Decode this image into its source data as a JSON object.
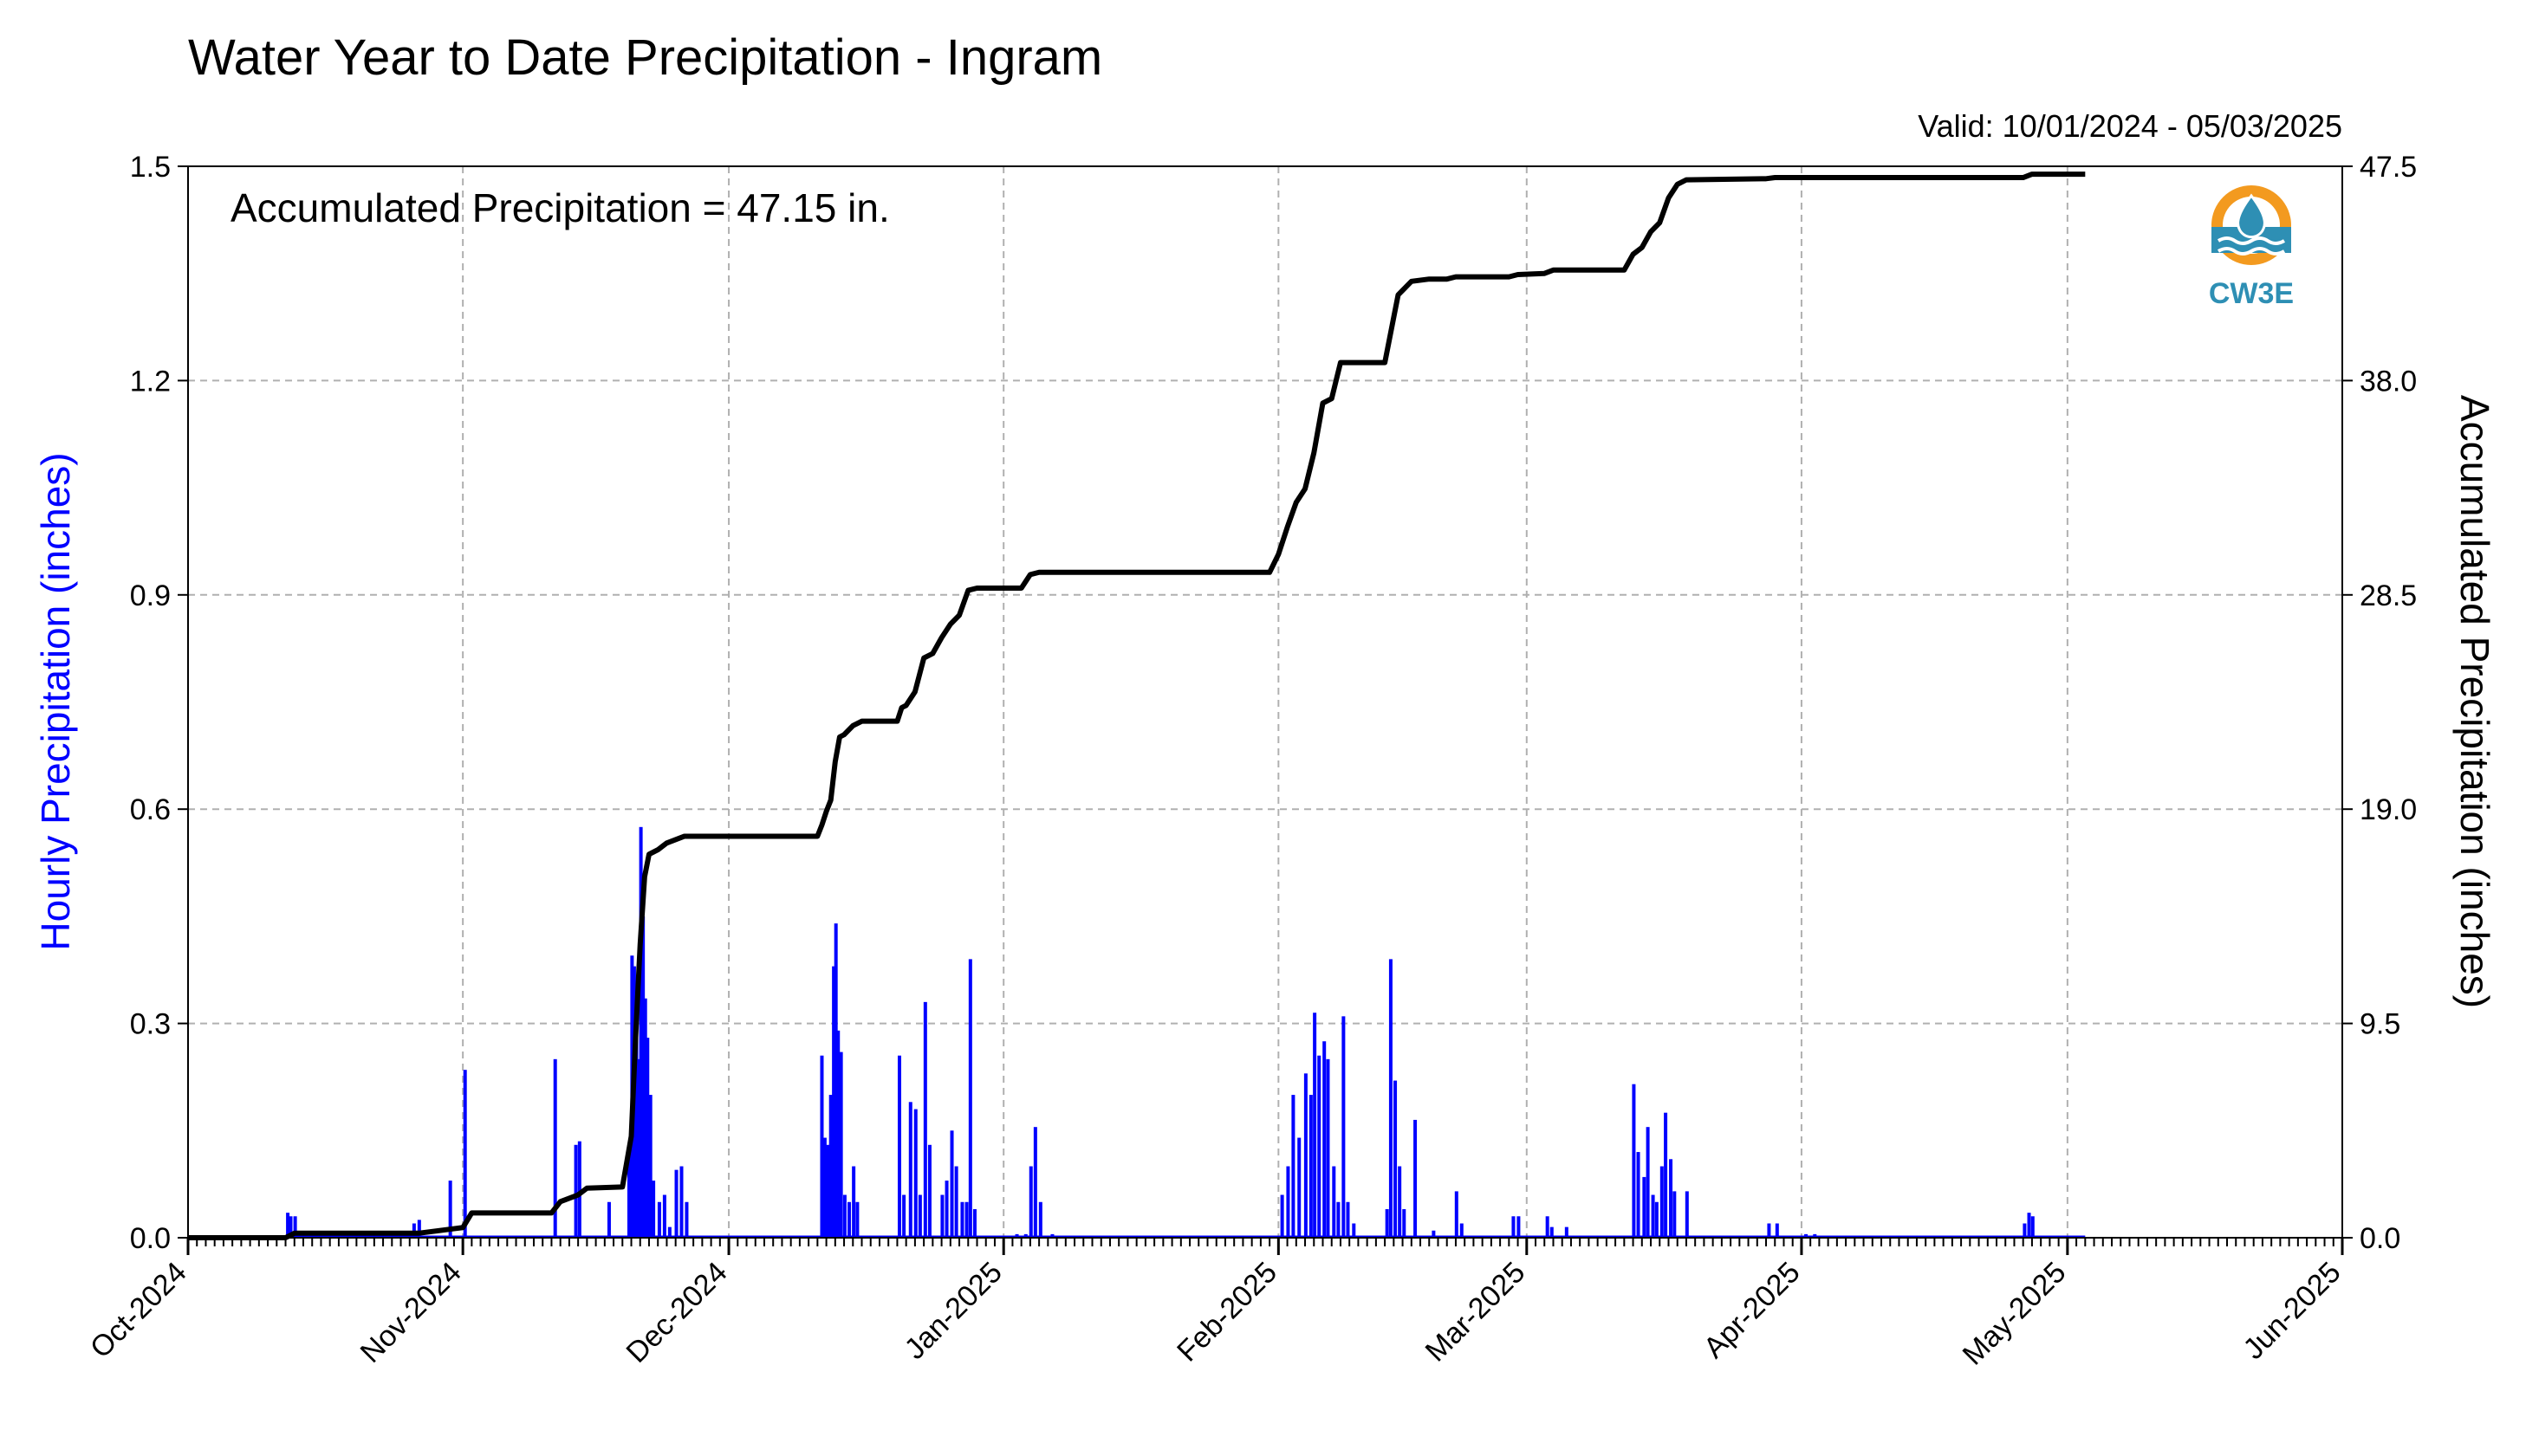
{
  "chart_data": {
    "type": "bar+line",
    "title": "Water Year to Date Precipitation - Ingram",
    "valid_text": "Valid: 10/01/2024 - 05/03/2025",
    "annotation": "Accumulated Precipitation = 47.15 in.",
    "logo_text": "CW3E",
    "ylabel_left": "Hourly Precipitation (inches)",
    "ylabel_right": "Accumulated Precipitation (inches)",
    "ylim_left": [
      0,
      1.5
    ],
    "ylim_right": [
      0,
      47.5
    ],
    "yticks_left": [
      "0.0",
      "0.3",
      "0.6",
      "0.9",
      "1.2",
      "1.5"
    ],
    "yticks_right": [
      "0.0",
      "9.5",
      "19.0",
      "28.5",
      "38.0",
      "47.5"
    ],
    "x_start": "2024-10-01",
    "x_end": "2025-06-01",
    "x_month_labels": [
      "Oct-2024",
      "Nov-2024",
      "Dec-2024",
      "Jan-2025",
      "Feb-2025",
      "Mar-2025",
      "Apr-2025",
      "May-2025",
      "Jun-2025"
    ],
    "x_month_dates": [
      "2024-10-01",
      "2024-11-01",
      "2024-12-01",
      "2025-01-01",
      "2025-02-01",
      "2025-03-01",
      "2025-04-01",
      "2025-05-01",
      "2025-06-01"
    ],
    "grid": true,
    "colors": {
      "hourly": "#0000ff",
      "accumulated": "#000000",
      "grid": "#b0b0b0",
      "left_label": "#0000ff"
    },
    "series": [
      {
        "name": "Hourly Precipitation",
        "type": "bar",
        "points": [
          [
            "2024-10-12T06",
            0.035
          ],
          [
            "2024-10-12T14",
            0.03
          ],
          [
            "2024-10-13T02",
            0.03
          ],
          [
            "2024-10-26T12",
            0.02
          ],
          [
            "2024-10-27T02",
            0.025
          ],
          [
            "2024-10-30T14",
            0.08
          ],
          [
            "2024-11-01T06",
            0.235
          ],
          [
            "2024-11-11T10",
            0.25
          ],
          [
            "2024-11-13T18",
            0.13
          ],
          [
            "2024-11-14T04",
            0.135
          ],
          [
            "2024-11-17T12",
            0.05
          ],
          [
            "2024-11-19T18",
            0.12
          ],
          [
            "2024-11-20T02",
            0.395
          ],
          [
            "2024-11-20T08",
            0.38
          ],
          [
            "2024-11-20T14",
            0.32
          ],
          [
            "2024-11-20T20",
            0.25
          ],
          [
            "2024-11-21T02",
            0.575
          ],
          [
            "2024-11-21T08",
            0.45
          ],
          [
            "2024-11-21T14",
            0.335
          ],
          [
            "2024-11-21T20",
            0.28
          ],
          [
            "2024-11-22T04",
            0.2
          ],
          [
            "2024-11-22T12",
            0.08
          ],
          [
            "2024-11-23T04",
            0.05
          ],
          [
            "2024-11-23T18",
            0.06
          ],
          [
            "2024-11-24T08",
            0.015
          ],
          [
            "2024-11-25T02",
            0.095
          ],
          [
            "2024-11-25T16",
            0.1
          ],
          [
            "2024-11-26T06",
            0.05
          ],
          [
            "2024-12-11T12",
            0.255
          ],
          [
            "2024-12-11T20",
            0.14
          ],
          [
            "2024-12-12T04",
            0.13
          ],
          [
            "2024-12-12T12",
            0.2
          ],
          [
            "2024-12-12T20",
            0.38
          ],
          [
            "2024-12-13T02",
            0.44
          ],
          [
            "2024-12-13T08",
            0.29
          ],
          [
            "2024-12-13T16",
            0.26
          ],
          [
            "2024-12-14T02",
            0.06
          ],
          [
            "2024-12-14T14",
            0.05
          ],
          [
            "2024-12-15T02",
            0.1
          ],
          [
            "2024-12-15T12",
            0.05
          ],
          [
            "2024-12-20T06",
            0.255
          ],
          [
            "2024-12-20T18",
            0.06
          ],
          [
            "2024-12-21T12",
            0.19
          ],
          [
            "2024-12-22T02",
            0.18
          ],
          [
            "2024-12-22T14",
            0.06
          ],
          [
            "2024-12-23T04",
            0.33
          ],
          [
            "2024-12-23T16",
            0.13
          ],
          [
            "2024-12-25T02",
            0.06
          ],
          [
            "2024-12-25T14",
            0.08
          ],
          [
            "2024-12-26T04",
            0.15
          ],
          [
            "2024-12-26T16",
            0.1
          ],
          [
            "2024-12-27T08",
            0.05
          ],
          [
            "2024-12-27T20",
            0.05
          ],
          [
            "2024-12-28T06",
            0.39
          ],
          [
            "2024-12-28T18",
            0.04
          ],
          [
            "2025-01-02T12",
            0.005
          ],
          [
            "2025-01-03T12",
            0.005
          ],
          [
            "2025-01-04T02",
            0.1
          ],
          [
            "2025-01-04T14",
            0.155
          ],
          [
            "2025-01-05T04",
            0.05
          ],
          [
            "2025-01-06T12",
            0.005
          ],
          [
            "2025-02-01T10",
            0.06
          ],
          [
            "2025-02-02T02",
            0.1
          ],
          [
            "2025-02-02T16",
            0.2
          ],
          [
            "2025-02-03T08",
            0.14
          ],
          [
            "2025-02-04T02",
            0.23
          ],
          [
            "2025-02-04T16",
            0.2
          ],
          [
            "2025-02-05T02",
            0.315
          ],
          [
            "2025-02-05T14",
            0.255
          ],
          [
            "2025-02-06T04",
            0.275
          ],
          [
            "2025-02-06T14",
            0.25
          ],
          [
            "2025-02-07T06",
            0.1
          ],
          [
            "2025-02-07T18",
            0.05
          ],
          [
            "2025-02-08T08",
            0.31
          ],
          [
            "2025-02-08T20",
            0.05
          ],
          [
            "2025-02-09T12",
            0.02
          ],
          [
            "2025-02-13T06",
            0.04
          ],
          [
            "2025-02-13T16",
            0.39
          ],
          [
            "2025-02-14T04",
            0.22
          ],
          [
            "2025-02-14T16",
            0.1
          ],
          [
            "2025-02-15T04",
            0.04
          ],
          [
            "2025-02-16T10",
            0.165
          ],
          [
            "2025-02-18T12",
            0.01
          ],
          [
            "2025-02-21T02",
            0.065
          ],
          [
            "2025-02-21T16",
            0.02
          ],
          [
            "2025-02-27T12",
            0.03
          ],
          [
            "2025-02-28T02",
            0.03
          ],
          [
            "2025-03-03T08",
            0.03
          ],
          [
            "2025-03-03T20",
            0.015
          ],
          [
            "2025-03-05T12",
            0.015
          ],
          [
            "2025-03-13T02",
            0.215
          ],
          [
            "2025-03-13T14",
            0.12
          ],
          [
            "2025-03-14T06",
            0.085
          ],
          [
            "2025-03-14T16",
            0.155
          ],
          [
            "2025-03-15T06",
            0.06
          ],
          [
            "2025-03-15T16",
            0.05
          ],
          [
            "2025-03-16T06",
            0.1
          ],
          [
            "2025-03-16T16",
            0.175
          ],
          [
            "2025-03-17T06",
            0.11
          ],
          [
            "2025-03-17T16",
            0.065
          ],
          [
            "2025-03-19T02",
            0.065
          ],
          [
            "2025-03-28T08",
            0.02
          ],
          [
            "2025-03-29T06",
            0.02
          ],
          [
            "2025-04-01T12",
            0.005
          ],
          [
            "2025-04-02T12",
            0.005
          ],
          [
            "2025-04-26T04",
            0.02
          ],
          [
            "2025-04-26T16",
            0.035
          ],
          [
            "2025-04-27T02",
            0.03
          ]
        ]
      },
      {
        "name": "Accumulated Precipitation",
        "type": "step-line",
        "points": [
          [
            "2024-10-01",
            0.0
          ],
          [
            "2024-10-12",
            0.0
          ],
          [
            "2024-10-13",
            0.2
          ],
          [
            "2024-10-27",
            0.2
          ],
          [
            "2024-10-31",
            0.4
          ],
          [
            "2024-11-01",
            0.45
          ],
          [
            "2024-11-02",
            1.1
          ],
          [
            "2024-11-11",
            1.1
          ],
          [
            "2024-11-12",
            1.6
          ],
          [
            "2024-11-14",
            1.9
          ],
          [
            "2024-11-15",
            2.2
          ],
          [
            "2024-11-19",
            2.25
          ],
          [
            "2024-11-20",
            4.5
          ],
          [
            "2024-11-20T12",
            9.0
          ],
          [
            "2024-11-21",
            13.0
          ],
          [
            "2024-11-21T12",
            16.0
          ],
          [
            "2024-11-22",
            17.0
          ],
          [
            "2024-11-23",
            17.2
          ],
          [
            "2024-11-24",
            17.5
          ],
          [
            "2024-11-26",
            17.8
          ],
          [
            "2024-12-11",
            17.8
          ],
          [
            "2024-12-11T12",
            18.3
          ],
          [
            "2024-12-12",
            18.9
          ],
          [
            "2024-12-12T12",
            19.4
          ],
          [
            "2024-12-13",
            21.1
          ],
          [
            "2024-12-13T12",
            22.2
          ],
          [
            "2024-12-14",
            22.3
          ],
          [
            "2024-12-15",
            22.7
          ],
          [
            "2024-12-16",
            22.9
          ],
          [
            "2024-12-20",
            22.9
          ],
          [
            "2024-12-20T12",
            23.5
          ],
          [
            "2024-12-21",
            23.6
          ],
          [
            "2024-12-22",
            24.2
          ],
          [
            "2024-12-23",
            25.7
          ],
          [
            "2024-12-24",
            25.9
          ],
          [
            "2024-12-25",
            26.6
          ],
          [
            "2024-12-26",
            27.2
          ],
          [
            "2024-12-27",
            27.6
          ],
          [
            "2024-12-28",
            28.7
          ],
          [
            "2024-12-29",
            28.8
          ],
          [
            "2025-01-03",
            28.8
          ],
          [
            "2025-01-04",
            29.4
          ],
          [
            "2025-01-05",
            29.5
          ],
          [
            "2025-01-31",
            29.5
          ],
          [
            "2025-02-01",
            30.3
          ],
          [
            "2025-02-02",
            31.5
          ],
          [
            "2025-02-03",
            32.6
          ],
          [
            "2025-02-04",
            33.2
          ],
          [
            "2025-02-05",
            34.8
          ],
          [
            "2025-02-06",
            37.0
          ],
          [
            "2025-02-07",
            37.2
          ],
          [
            "2025-02-08",
            38.8
          ],
          [
            "2025-02-13",
            38.8
          ],
          [
            "2025-02-14",
            40.8
          ],
          [
            "2025-02-14T12",
            41.8
          ],
          [
            "2025-02-15",
            42.0
          ],
          [
            "2025-02-16",
            42.4
          ],
          [
            "2025-02-18",
            42.5
          ],
          [
            "2025-02-20",
            42.5
          ],
          [
            "2025-02-21",
            42.6
          ],
          [
            "2025-02-27",
            42.6
          ],
          [
            "2025-02-28",
            42.7
          ],
          [
            "2025-03-03",
            42.75
          ],
          [
            "2025-03-04",
            42.9
          ],
          [
            "2025-03-12",
            42.9
          ],
          [
            "2025-03-13",
            43.6
          ],
          [
            "2025-03-14",
            43.9
          ],
          [
            "2025-03-15",
            44.6
          ],
          [
            "2025-03-16",
            45.0
          ],
          [
            "2025-03-17",
            46.1
          ],
          [
            "2025-03-18",
            46.7
          ],
          [
            "2025-03-19",
            46.9
          ],
          [
            "2025-03-28",
            46.95
          ],
          [
            "2025-03-29",
            47.0
          ],
          [
            "2025-04-26",
            47.0
          ],
          [
            "2025-04-27",
            47.15
          ],
          [
            "2025-05-03",
            47.15
          ]
        ]
      }
    ]
  }
}
